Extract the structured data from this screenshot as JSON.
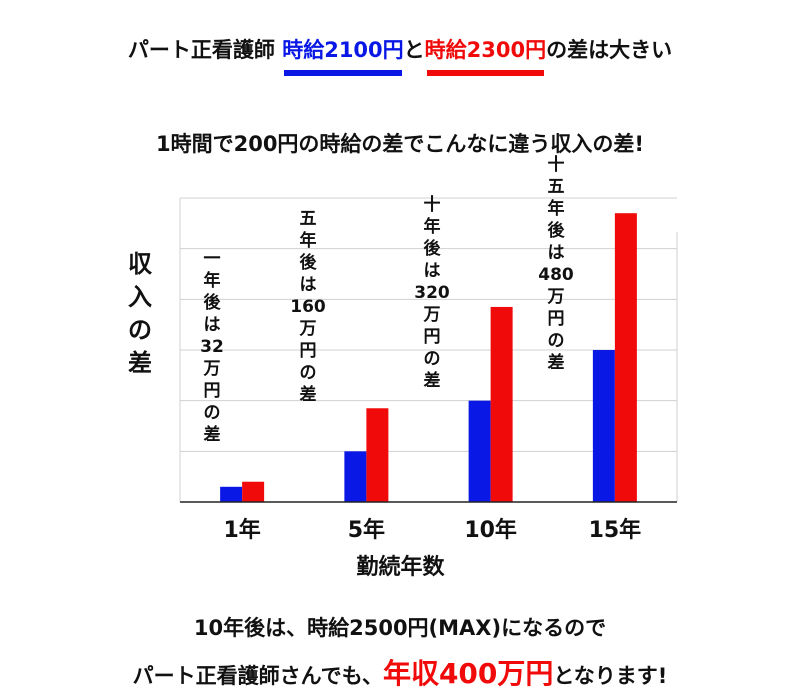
{
  "headline": {
    "prefix": "パート正看護師 ",
    "blue_text": "時給2100円",
    "connector": "と",
    "red_text": "時給2300円",
    "suffix": "の差は大きい"
  },
  "subtitle": "1時間で200円の時給の差でこんなに違う収入の差!",
  "footer": {
    "line1": "10年後は、時給2500円(MAX)になるので",
    "line2_prefix": "パート正看護師さんでも、",
    "line2_highlight": "年収400万円",
    "line2_suffix": "となります!"
  },
  "chart_data": {
    "type": "bar",
    "categories": [
      "1年",
      "5年",
      "10年",
      "15年"
    ],
    "series": [
      {
        "name": "時給2100円",
        "color": "#0a18e6",
        "values": [
          3,
          10,
          20,
          30
        ]
      },
      {
        "name": "時給2300円",
        "color": "#f00a0a",
        "values": [
          4,
          18.5,
          38.5,
          57
        ]
      }
    ],
    "ylim": [
      0,
      60
    ],
    "grid": true,
    "ylabel": "収入の差",
    "xlabel": "勤続年数",
    "annotations": [
      "一年後は32万円の差",
      "五年後は160万円の差",
      "十年後は320万円の差",
      "十五年後は480万円の差"
    ]
  }
}
